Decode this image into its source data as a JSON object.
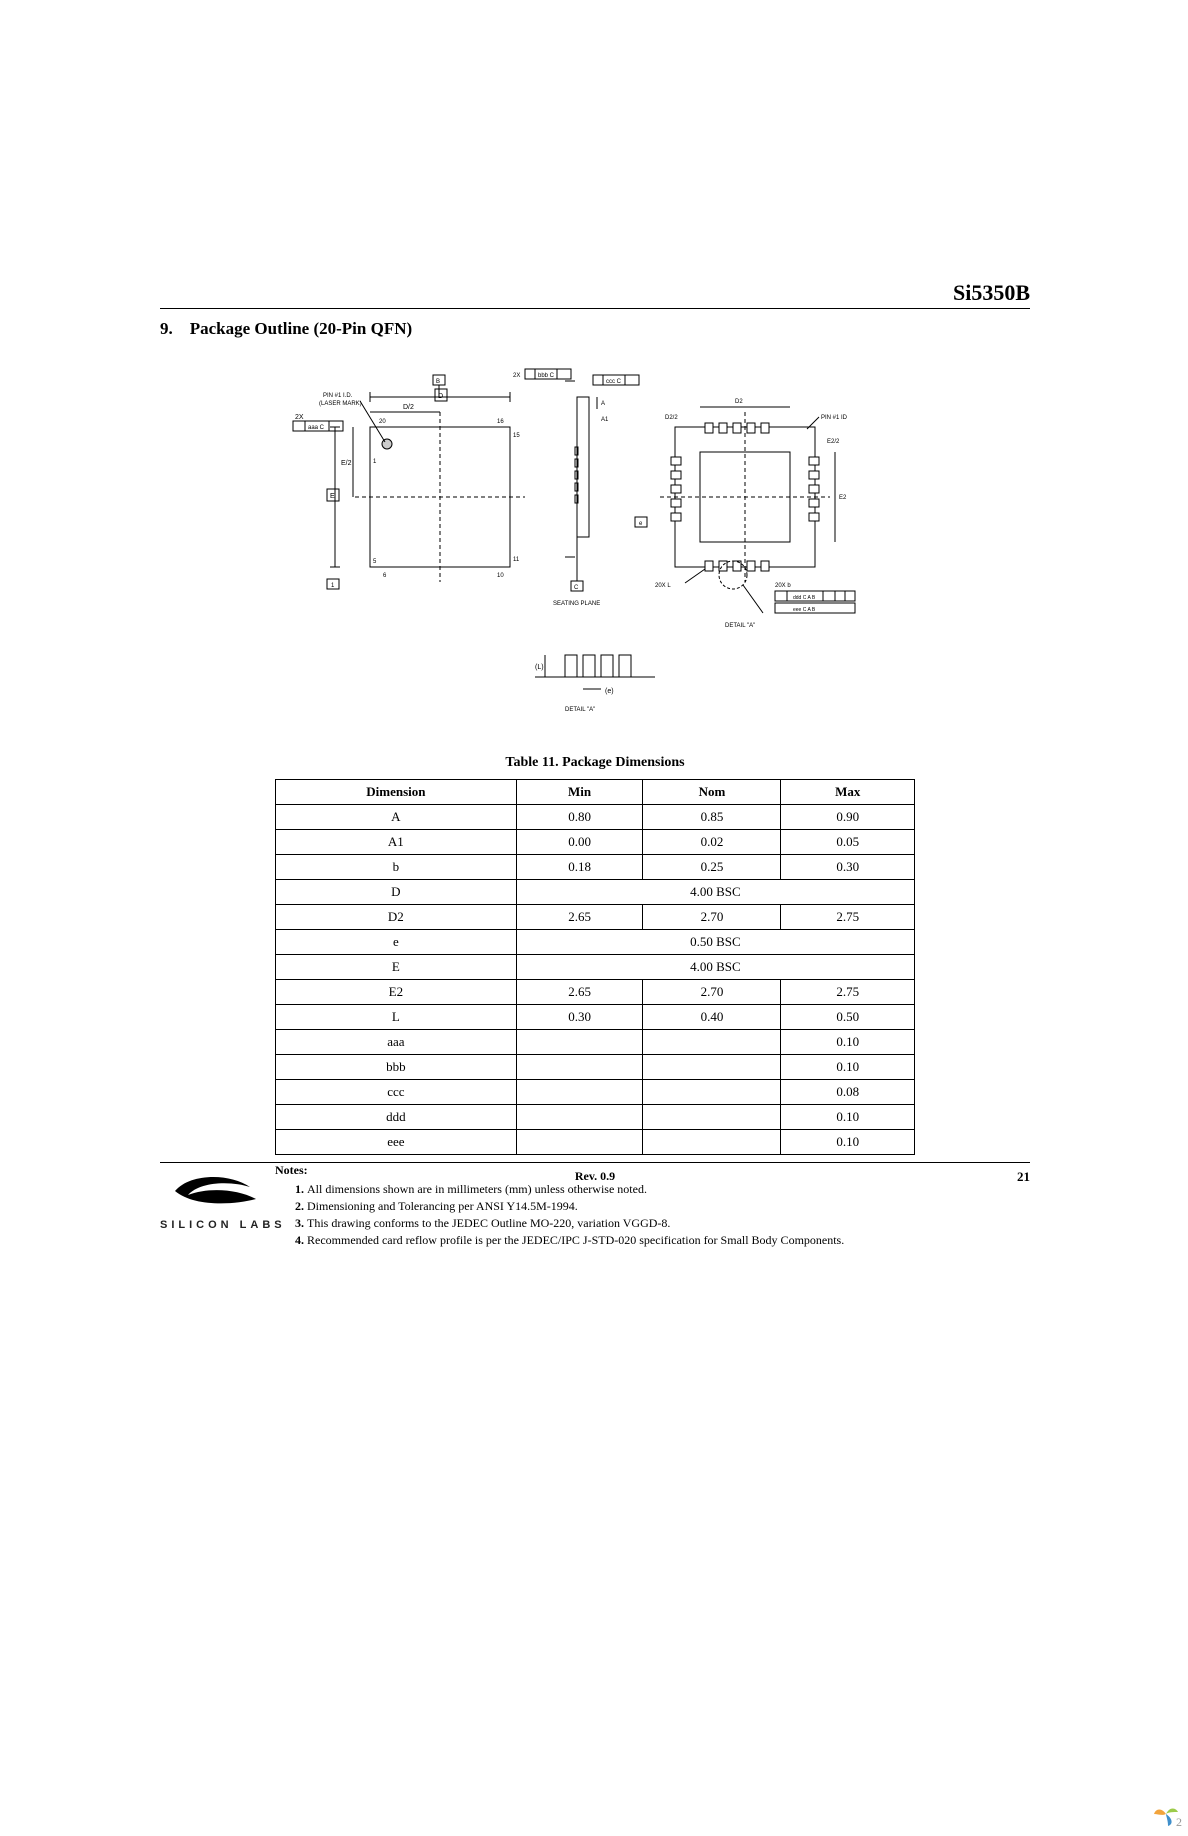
{
  "header": {
    "part_number": "Si5350B"
  },
  "section": {
    "number": "9.",
    "title": "Package Outline (20-Pin QFN)"
  },
  "table": {
    "caption": "Table 11. Package Dimensions",
    "columns": [
      "Dimension",
      "Min",
      "Nom",
      "Max"
    ],
    "rows": [
      {
        "dim": "A",
        "min": "0.80",
        "nom": "0.85",
        "max": "0.90",
        "span": null
      },
      {
        "dim": "A1",
        "min": "0.00",
        "nom": "0.02",
        "max": "0.05",
        "span": null
      },
      {
        "dim": "b",
        "min": "0.18",
        "nom": "0.25",
        "max": "0.30",
        "span": null
      },
      {
        "dim": "D",
        "min": null,
        "nom": null,
        "max": null,
        "span": "4.00 BSC"
      },
      {
        "dim": "D2",
        "min": "2.65",
        "nom": "2.70",
        "max": "2.75",
        "span": null
      },
      {
        "dim": "e",
        "min": null,
        "nom": null,
        "max": null,
        "span": "0.50 BSC"
      },
      {
        "dim": "E",
        "min": null,
        "nom": null,
        "max": null,
        "span": "4.00 BSC"
      },
      {
        "dim": "E2",
        "min": "2.65",
        "nom": "2.70",
        "max": "2.75",
        "span": null
      },
      {
        "dim": "L",
        "min": "0.30",
        "nom": "0.40",
        "max": "0.50",
        "span": null
      },
      {
        "dim": "aaa",
        "min": "",
        "nom": "",
        "max": "0.10",
        "span": null
      },
      {
        "dim": "bbb",
        "min": "",
        "nom": "",
        "max": "0.10",
        "span": null
      },
      {
        "dim": "ccc",
        "min": "",
        "nom": "",
        "max": "0.08",
        "span": null
      },
      {
        "dim": "ddd",
        "min": "",
        "nom": "",
        "max": "0.10",
        "span": null
      },
      {
        "dim": "eee",
        "min": "",
        "nom": "",
        "max": "0.10",
        "span": null
      }
    ]
  },
  "notes": {
    "title": "Notes:",
    "items": [
      "All dimensions shown are in millimeters (mm) unless otherwise noted.",
      "Dimensioning and Tolerancing per ANSI Y14.5M-1994.",
      "This drawing conforms to the JEDEC Outline MO-220, variation VGGD-8.",
      "Recommended card reflow profile is per the JEDEC/IPC J-STD-020 specification for Small Body Components."
    ]
  },
  "diagram": {
    "labels": {
      "pin1": "PIN #1 I.D.\n(LASER MARK)",
      "two_x": "2X",
      "e_over_2": "E/2",
      "d_over_2": "D/2",
      "d2_over_2": "D2/2",
      "e2_over_2": "E2/2",
      "pin1_id": "PIN #1 ID",
      "L20x": "20X L",
      "b20x": "20X b",
      "seating": "SEATING PLANE",
      "detail_a": "DETAIL \"A\"",
      "detail_a_ref": "DETAIL \"A\"",
      "letters": {
        "D": "D",
        "E": "E",
        "A": "A",
        "A1": "A1",
        "b": "b",
        "L": "L",
        "e": "e",
        "D2": "D2",
        "E2": "E2"
      },
      "gtol1": "aaa  C",
      "gtol2": "ccc  C",
      "gtol3": "ddd C  A  B",
      "gtol4": "eee C  A  B"
    },
    "styling": {
      "stroke": "#000000",
      "stroke_width": 1,
      "dash": "4 3",
      "font_size_small": 7,
      "font_size_tiny": 6,
      "background": "#ffffff"
    }
  },
  "footer": {
    "company": "SILICON LABS",
    "revision": "Rev. 0.9",
    "page": "21",
    "logo_colors": {
      "swirl": "#000000",
      "reg": "®"
    }
  },
  "corner_badge": {
    "colors": [
      "#f2a43c",
      "#9ccb4a",
      "#3f8fcb"
    ],
    "label": "2"
  }
}
